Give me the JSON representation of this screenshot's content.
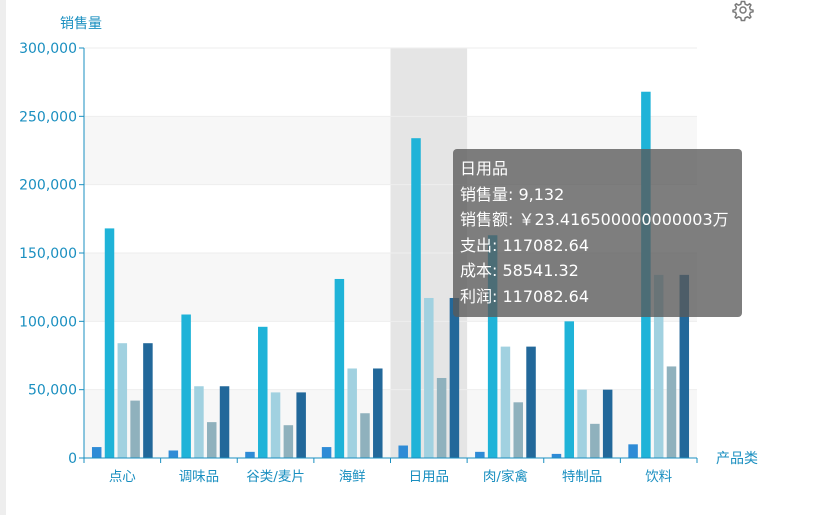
{
  "chart_data": {
    "type": "bar",
    "ylabel": "销售量",
    "xlabel": "产品类",
    "ylim": [
      0,
      300000
    ],
    "yticks": [
      "0",
      "50,000",
      "100,000",
      "150,000",
      "200,000",
      "250,000",
      "300,000"
    ],
    "ytick_values": [
      0,
      50000,
      100000,
      150000,
      200000,
      250000,
      300000
    ],
    "categories": [
      "点心",
      "调味品",
      "谷类/麦片",
      "海鲜",
      "日用品",
      "肉/家禽",
      "特制品",
      "饮料"
    ],
    "highlighted_category": "日用品",
    "series": [
      {
        "color": "#2e8bd6",
        "values": [
          8000,
          5500,
          4500,
          8000,
          9132,
          4500,
          3000,
          10000
        ]
      },
      {
        "color": "#1fb3d8",
        "values": [
          168000,
          105000,
          96000,
          131000,
          234000,
          163000,
          100000,
          268000
        ]
      },
      {
        "color": "#a1d1e0",
        "values": [
          84000,
          52500,
          48000,
          65500,
          117082.64,
          81500,
          50000,
          134000
        ]
      },
      {
        "color": "#8fb1bd",
        "values": [
          42000,
          26250,
          24000,
          32750,
          58541.32,
          40750,
          25000,
          67000
        ]
      },
      {
        "color": "#22689a",
        "values": [
          84000,
          52500,
          48000,
          65500,
          117082.64,
          81500,
          50000,
          134000
        ]
      }
    ],
    "grid": true,
    "tooltip": {
      "title": "日用品",
      "lines": [
        "销售量: 9,132",
        "销售额: ￥23.416500000000003万",
        "支出: 117082.64",
        "成本: 58541.32",
        "利润: 117082.64"
      ]
    }
  },
  "toolbar": {
    "icon": "gear-icon"
  },
  "colors": {
    "axis": "#1a8fc0",
    "tick_text": "#1a8fc0",
    "grid": "#eeeeee",
    "band": "#f7f7f7",
    "highlight": "#e5e5e5"
  }
}
